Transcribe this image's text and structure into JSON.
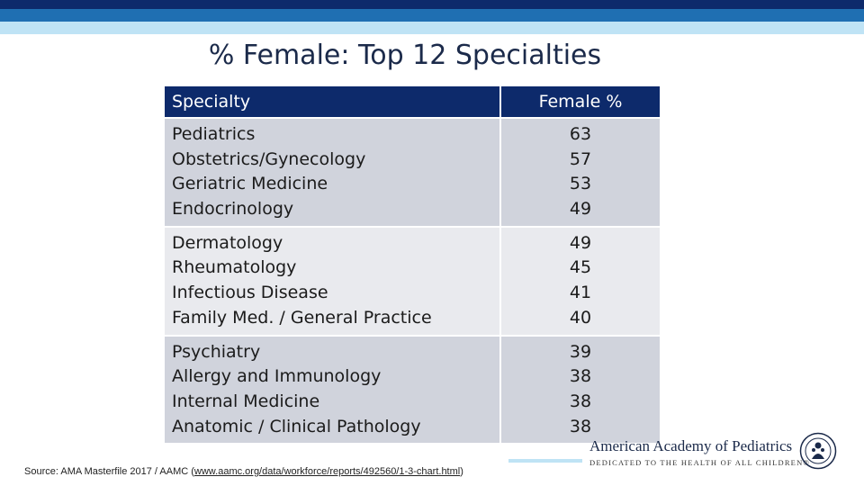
{
  "title": "% Female: Top 12 Specialties",
  "table": {
    "headers": {
      "specialty": "Specialty",
      "female": "Female %"
    },
    "groups": [
      {
        "rows": [
          {
            "specialty": "Pediatrics",
            "female": "63"
          },
          {
            "specialty": "Obstetrics/Gynecology",
            "female": "57"
          },
          {
            "specialty": "Geriatric Medicine",
            "female": "53"
          },
          {
            "specialty": "Endocrinology",
            "female": "49"
          }
        ]
      },
      {
        "rows": [
          {
            "specialty": "Dermatology",
            "female": "49"
          },
          {
            "specialty": "Rheumatology",
            "female": "45"
          },
          {
            "specialty": "Infectious Disease",
            "female": "41"
          },
          {
            "specialty": "Family Med. / General Practice",
            "female": "40"
          }
        ]
      },
      {
        "rows": [
          {
            "specialty": "Psychiatry",
            "female": "39"
          },
          {
            "specialty": "Allergy and Immunology",
            "female": "38"
          },
          {
            "specialty": "Internal Medicine",
            "female": "38"
          },
          {
            "specialty": "Anatomic / Clinical Pathology",
            "female": "38"
          }
        ]
      }
    ]
  },
  "source": {
    "prefix": "Source:  AMA Masterfile 2017 / AAMC (",
    "link_text": "www.aamc.org/data/workforce/reports/492560/1-3-chart.html",
    "suffix": ")"
  },
  "logo": {
    "name": "American Academy of Pediatrics",
    "tagline": "DEDICATED TO THE HEALTH OF ALL CHILDREN®",
    "seal_icon": "aap-seal-icon"
  },
  "colors": {
    "navy": "#0d2a6b",
    "blue": "#1f6fb2",
    "light_blue": "#bfe3f5",
    "row_dark": "#d0d3dc",
    "row_light": "#e9eaee"
  }
}
